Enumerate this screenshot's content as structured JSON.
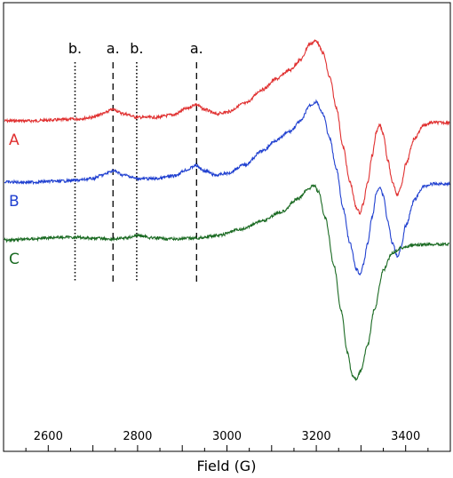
{
  "chart_data": {
    "type": "line",
    "title": "",
    "xlabel": "Field (G)",
    "ylabel": "",
    "xlim": [
      2500,
      3500
    ],
    "ylim": [
      -1.5,
      1.0
    ],
    "xticks": [
      2600,
      2800,
      3000,
      3200,
      3400
    ],
    "y_axis_visible": false,
    "grid": false,
    "legend": "none",
    "series": [
      {
        "name": "A",
        "color": "#e03030",
        "x": [
          2500,
          2560,
          2620,
          2660,
          2700,
          2720,
          2745,
          2770,
          2800,
          2840,
          2880,
          2910,
          2930,
          2950,
          2975,
          3000,
          3040,
          3080,
          3110,
          3140,
          3165,
          3185,
          3200,
          3215,
          3230,
          3245,
          3260,
          3275,
          3290,
          3298,
          3305,
          3315,
          3325,
          3335,
          3342,
          3350,
          3360,
          3370,
          3382,
          3390,
          3400,
          3420,
          3440,
          3460,
          3480,
          3500
        ],
        "y": [
          0.0,
          0.0,
          0.01,
          0.02,
          0.04,
          0.08,
          0.13,
          0.08,
          0.04,
          0.04,
          0.07,
          0.14,
          0.19,
          0.13,
          0.08,
          0.1,
          0.2,
          0.36,
          0.48,
          0.58,
          0.7,
          0.88,
          0.92,
          0.78,
          0.5,
          0.15,
          -0.3,
          -0.7,
          -1.0,
          -1.06,
          -0.95,
          -0.7,
          -0.4,
          -0.12,
          -0.05,
          -0.15,
          -0.45,
          -0.7,
          -0.85,
          -0.75,
          -0.5,
          -0.2,
          -0.05,
          -0.02,
          -0.02,
          -0.02
        ]
      },
      {
        "name": "B",
        "color": "#2040d0",
        "x": [
          2500,
          2560,
          2620,
          2660,
          2700,
          2720,
          2745,
          2770,
          2800,
          2840,
          2880,
          2910,
          2930,
          2950,
          2975,
          3000,
          3040,
          3080,
          3110,
          3140,
          3165,
          3185,
          3200,
          3215,
          3230,
          3245,
          3260,
          3275,
          3290,
          3298,
          3305,
          3315,
          3325,
          3335,
          3342,
          3350,
          3360,
          3370,
          3382,
          3390,
          3400,
          3420,
          3440,
          3460,
          3480,
          3500
        ],
        "y": [
          0.0,
          0.0,
          0.01,
          0.02,
          0.04,
          0.08,
          0.13,
          0.08,
          0.04,
          0.04,
          0.07,
          0.14,
          0.19,
          0.13,
          0.08,
          0.1,
          0.2,
          0.36,
          0.48,
          0.58,
          0.7,
          0.88,
          0.92,
          0.78,
          0.5,
          0.15,
          -0.3,
          -0.7,
          -1.0,
          -1.06,
          -0.95,
          -0.7,
          -0.4,
          -0.12,
          -0.05,
          -0.15,
          -0.45,
          -0.7,
          -0.85,
          -0.75,
          -0.5,
          -0.2,
          -0.05,
          -0.02,
          -0.02,
          -0.02
        ]
      },
      {
        "name": "C",
        "color": "#1a6a22",
        "x": [
          2500,
          2560,
          2620,
          2660,
          2700,
          2745,
          2770,
          2800,
          2840,
          2880,
          2930,
          2980,
          3030,
          3080,
          3120,
          3160,
          3180,
          3195,
          3205,
          3220,
          3240,
          3255,
          3270,
          3280,
          3290,
          3300,
          3315,
          3330,
          3350,
          3370,
          3390,
          3420,
          3460,
          3500
        ],
        "y": [
          0.0,
          0.01,
          0.03,
          0.03,
          0.02,
          0.01,
          0.02,
          0.05,
          0.02,
          0.01,
          0.02,
          0.05,
          0.12,
          0.22,
          0.32,
          0.47,
          0.58,
          0.63,
          0.55,
          0.25,
          -0.3,
          -0.8,
          -1.3,
          -1.55,
          -1.6,
          -1.5,
          -1.2,
          -0.8,
          -0.35,
          -0.15,
          -0.09,
          -0.06,
          -0.05,
          -0.05
        ]
      }
    ],
    "annotations": [
      {
        "label": "b.",
        "x": 2660,
        "style": "dotted"
      },
      {
        "label": "a.",
        "x": 2745,
        "style": "dashed"
      },
      {
        "label": "b.",
        "x": 2798,
        "style": "dotted"
      },
      {
        "label": "a.",
        "x": 2932,
        "style": "dashed"
      }
    ]
  }
}
